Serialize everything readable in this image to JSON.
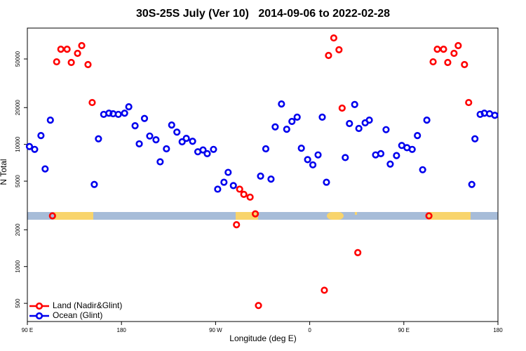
{
  "chart_data": {
    "type": "scatter",
    "title": "30S-25S July (Ver 10)   2014-09-06 to 2022-02-28",
    "x_label": "Longitude (deg E)",
    "y_label": "N Total",
    "xlim": [
      90,
      540
    ],
    "ylim": [
      355,
      89500
    ],
    "log_y": true,
    "legend": "bottom-left",
    "xticks": [
      {
        "value": 90,
        "label": "90 E"
      },
      180,
      {
        "value": 270,
        "label": "90 W"
      },
      {
        "value": 360,
        "label": "0"
      },
      {
        "value": 450,
        "label": "90 E"
      },
      {
        "value": 540,
        "label": "180"
      }
    ],
    "yticks": [
      500,
      1000,
      2000,
      5000,
      10000,
      20000,
      50000
    ],
    "series": [
      {
        "name": "Land (Nadir&Glint)",
        "color": "#ff0000",
        "x": [
          114,
          118,
          122,
          128,
          132,
          138,
          142,
          148,
          152,
          290,
          293,
          297,
          303,
          308,
          311,
          374,
          378,
          383,
          388,
          391,
          406,
          474,
          478,
          482,
          488,
          492,
          498,
          502,
          508,
          512
        ],
        "values": [
          2600,
          47400,
          60100,
          60100,
          46800,
          55600,
          64300,
          45000,
          22000,
          2200,
          4300,
          3900,
          3700,
          2700,
          480,
          640,
          53400,
          74300,
          59500,
          19800,
          1300,
          2600,
          47400,
          60100,
          60100,
          46800,
          55600,
          64300,
          45000,
          22000
        ]
      },
      {
        "name": "Ocean (Glint)",
        "color": "#0000ee",
        "x": [
          92,
          97,
          103,
          107,
          112,
          154,
          158,
          163,
          168,
          172,
          177,
          183,
          187,
          193,
          197,
          202,
          207,
          213,
          217,
          223,
          228,
          233,
          238,
          242,
          248,
          253,
          258,
          262,
          268,
          272,
          278,
          282,
          287,
          313,
          318,
          323,
          327,
          333,
          338,
          343,
          348,
          352,
          358,
          363,
          368,
          372,
          376,
          394,
          398,
          403,
          407,
          413,
          417,
          423,
          428,
          433,
          437,
          443,
          448,
          453,
          458,
          463,
          468,
          472,
          515,
          518,
          523,
          527,
          532,
          537
        ],
        "values": [
          9600,
          9100,
          11800,
          6300,
          15800,
          4700,
          11100,
          17600,
          18000,
          17800,
          17600,
          18000,
          20300,
          14200,
          10100,
          16300,
          11700,
          10900,
          7200,
          9200,
          14400,
          12600,
          10500,
          11200,
          10600,
          8700,
          9000,
          8400,
          9100,
          4300,
          4900,
          5900,
          4600,
          5500,
          9200,
          5200,
          13900,
          21400,
          13300,
          15400,
          16700,
          9300,
          7500,
          6800,
          8200,
          16700,
          4900,
          7800,
          14800,
          21200,
          13500,
          15000,
          15800,
          8200,
          8400,
          13200,
          6900,
          8100,
          9800,
          9400,
          9100,
          11800,
          6200,
          15800,
          4700,
          11100,
          17600,
          18000,
          17800,
          17300
        ]
      }
    ]
  }
}
